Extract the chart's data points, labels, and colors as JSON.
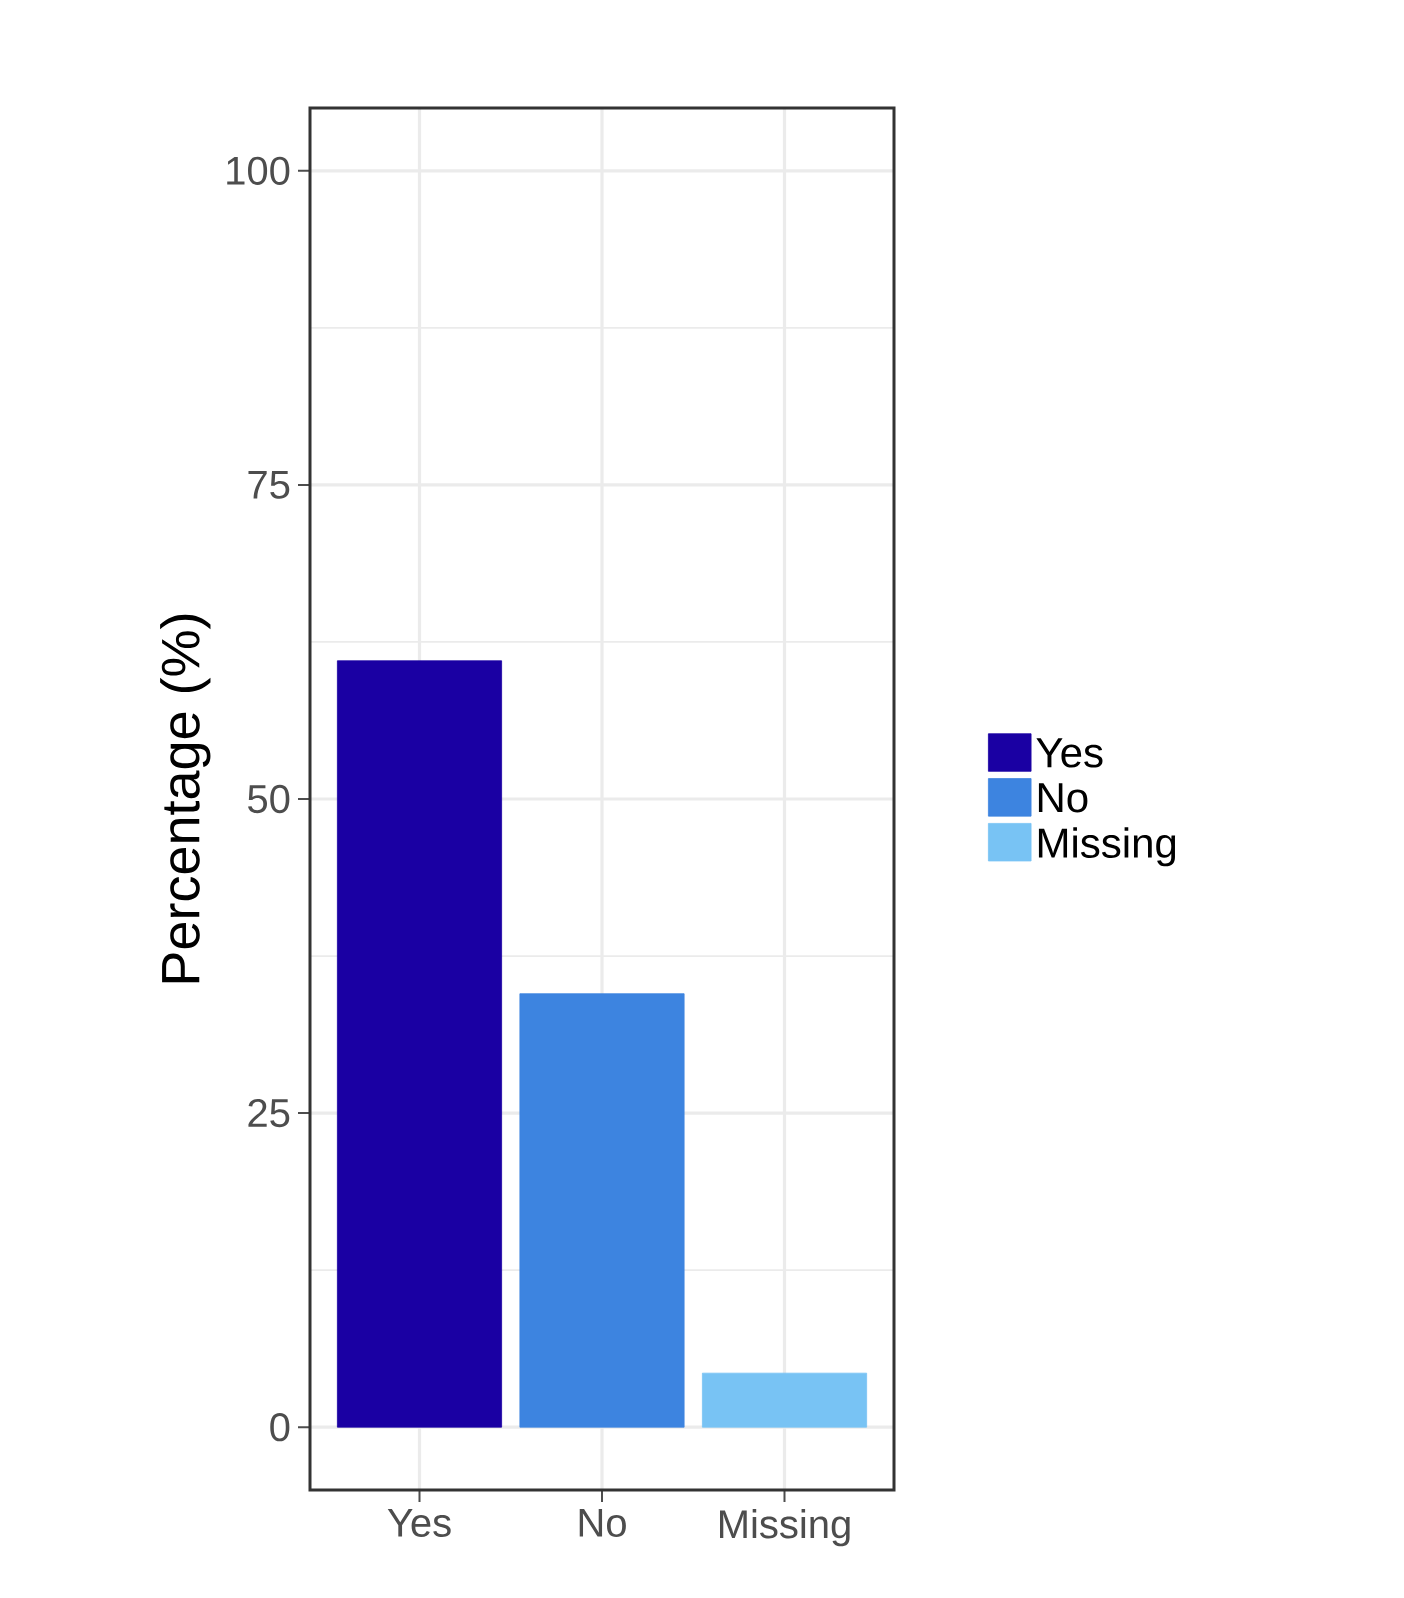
{
  "chart_data": {
    "type": "bar",
    "ylabel": "Percentage (%)",
    "categories": [
      "Yes",
      "No",
      "Missing"
    ],
    "series": [
      {
        "name": "Yes",
        "color": "#1a00a3",
        "values": [
          61,
          null,
          null
        ]
      },
      {
        "name": "No",
        "color": "#3d84e0",
        "values": [
          null,
          34.5,
          null
        ]
      },
      {
        "name": "Missing",
        "color": "#78c3f4",
        "values": [
          null,
          null,
          4.3
        ]
      }
    ],
    "ylim": [
      -5,
      105
    ],
    "yticks": [
      0,
      25,
      50,
      75,
      100
    ],
    "grid": true,
    "legend": "right"
  }
}
